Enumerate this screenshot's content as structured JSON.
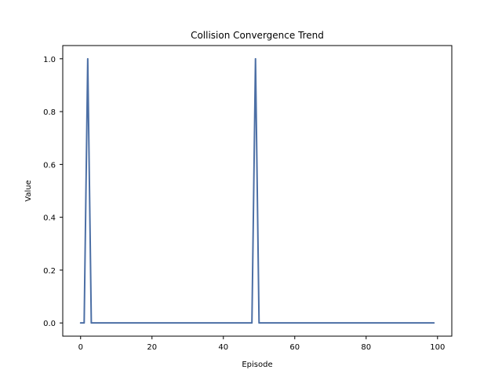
{
  "chart_data": {
    "type": "line",
    "title": "Collision Convergence Trend",
    "xlabel": "Episode",
    "ylabel": "Value",
    "xlim": [
      -5,
      104
    ],
    "ylim": [
      -0.05,
      1.05
    ],
    "xticks": [
      0,
      20,
      40,
      60,
      80,
      100
    ],
    "yticks": [
      0.0,
      0.2,
      0.4,
      0.6,
      0.8,
      1.0
    ],
    "xtick_labels": [
      "0",
      "20",
      "40",
      "60",
      "80",
      "100"
    ],
    "ytick_labels": [
      "0.0",
      "0.2",
      "0.4",
      "0.6",
      "0.8",
      "1.0"
    ],
    "grid": false,
    "legend": "none",
    "series": [
      {
        "color": "#4c6fa5",
        "x": [
          0,
          1,
          2,
          3,
          48,
          49,
          50,
          99
        ],
        "values": [
          0,
          0,
          1,
          0,
          0,
          1,
          0,
          0
        ]
      }
    ]
  }
}
